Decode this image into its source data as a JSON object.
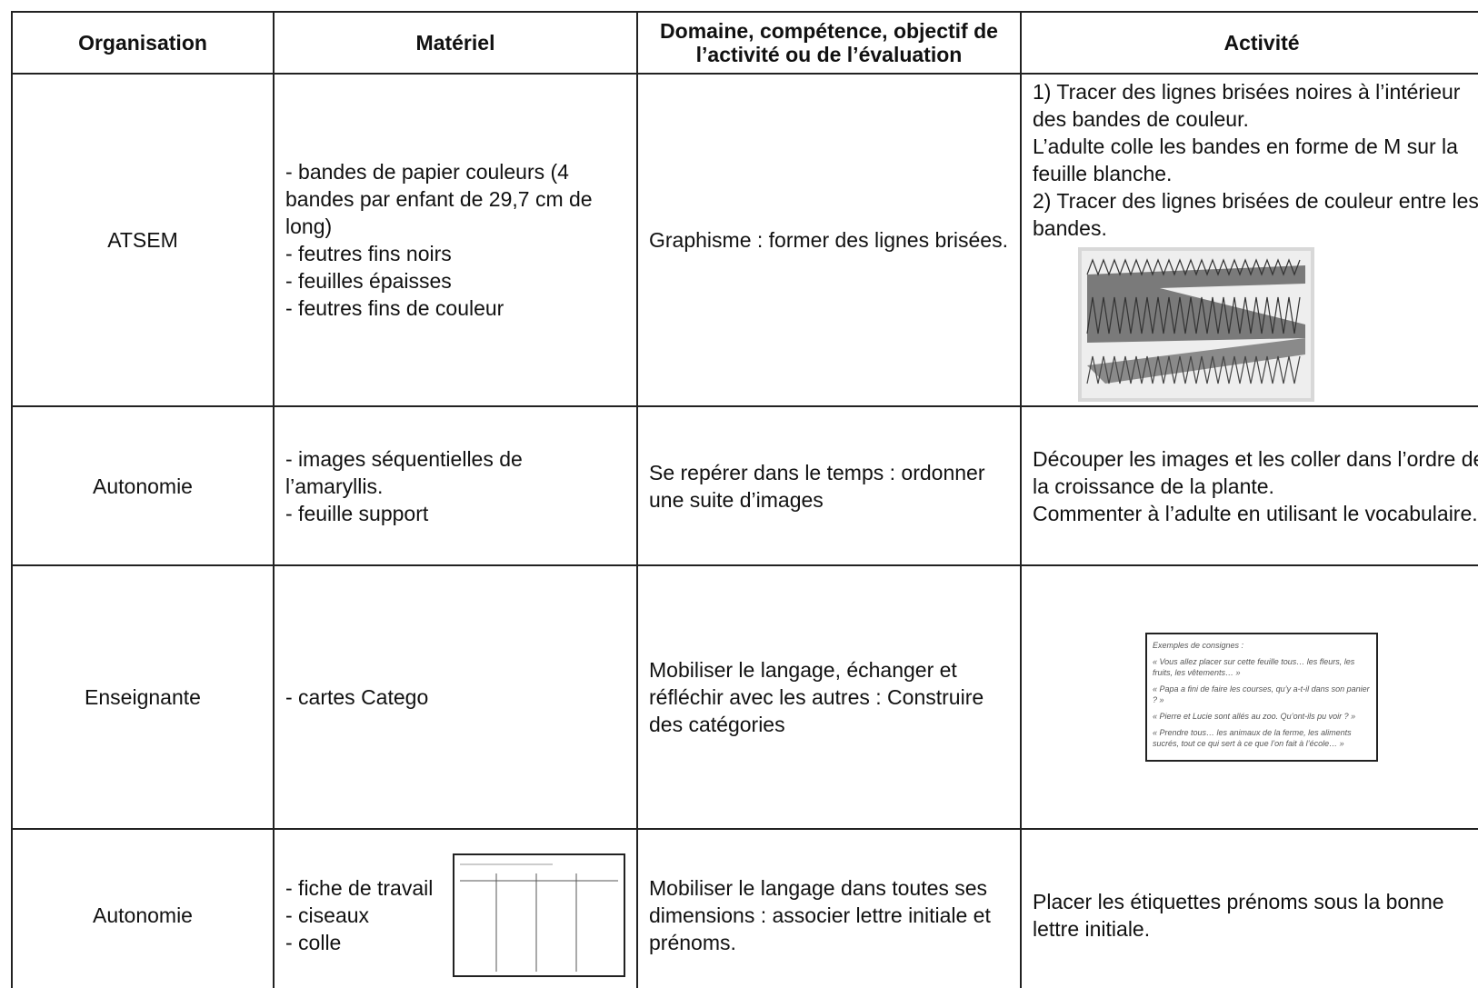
{
  "table": {
    "headers": [
      "Organisation",
      "Matériel",
      "Domaine, compétence, objectif de l’activité ou de l’évaluation",
      "Activité"
    ],
    "rows": [
      {
        "organisation": "ATSEM",
        "materiel": [
          "- bandes de papier couleurs (4 bandes par enfant de 29,7 cm de long)",
          "- feutres fins noirs",
          "- feuilles épaisses",
          "- feutres fins de couleur"
        ],
        "domaine": "Graphisme : former des lignes brisées.",
        "activite": [
          "1) Tracer des lignes brisées noires à l’intérieur des bandes de couleur.",
          "L’adulte colle les bandes en forme de M sur la feuille blanche.",
          "2) Tracer des lignes brisées de couleur entre les bandes."
        ]
      },
      {
        "organisation": "Autonomie",
        "materiel": [
          "- images séquentielles de l’amaryllis.",
          "- feuille support"
        ],
        "domaine": "Se repérer dans le temps : ordonner une suite d’images",
        "activite": [
          "Découper les images et les coller dans l’ordre de la croissance de la plante.",
          "Commenter à l’adulte en utilisant le vocabulaire."
        ]
      },
      {
        "organisation": "Enseignante",
        "materiel": [
          "- cartes Catego"
        ],
        "domaine": "Mobiliser le langage, échanger et réfléchir avec les autres : Construire des catégories",
        "consignes": [
          "Exemples de consignes :",
          "« Vous allez placer sur cette feuille tous… les fleurs, les fruits, les vêtements… »",
          "« Papa a fini de faire les courses, qu’y a-t-il dans son panier ? »",
          "« Pierre et Lucie sont allés au zoo. Qu’ont-ils pu voir ? »",
          "« Prendre tous… les animaux de la ferme, les aliments sucrés, tout ce qui sert à ce que l’on fait à l’école… »"
        ]
      },
      {
        "organisation": "Autonomie",
        "materiel": [
          "- fiche de travail",
          "- ciseaux",
          "- colle"
        ],
        "domaine": "Mobiliser le langage dans toutes ses dimensions : associer lettre initiale et prénoms.",
        "activite": [
          "Placer les étiquettes prénoms sous la bonne lettre initiale."
        ]
      }
    ]
  }
}
